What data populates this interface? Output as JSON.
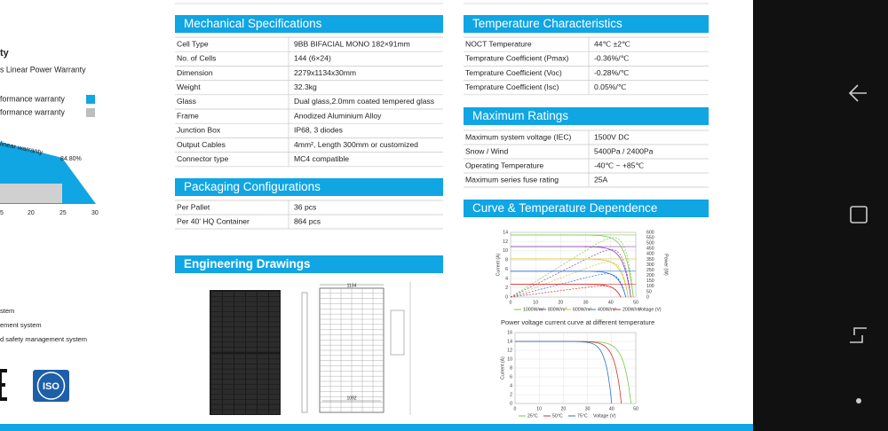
{
  "left_panel": {
    "title_fragment": "ty",
    "subtitle_fragment": "s Linear Power Warranty",
    "legend": [
      "formance warranty",
      "formance warranty"
    ],
    "chart": {
      "curve_label": "linear warranty",
      "end_value": "84.80%",
      "x_ticks": [
        "5",
        "20",
        "25",
        "30"
      ]
    },
    "certifications": [
      "stem",
      "ement system",
      "d safety management system"
    ],
    "logo": "ISO"
  },
  "mechanical": {
    "title": "Mechanical Specifications",
    "rows": [
      [
        "Cell Type",
        "9BB BIFACIAL MONO 182×91mm"
      ],
      [
        "No. of Cells",
        "144 (6×24)"
      ],
      [
        "Dimension",
        "2279x1134x30mm"
      ],
      [
        "Weight",
        "32.3kg"
      ],
      [
        "Glass",
        "Dual glass,2.0mm coated tempered glass"
      ],
      [
        "Frame",
        "Anodized Aluminium Alloy"
      ],
      [
        "Junction Box",
        "IP68, 3 diodes"
      ],
      [
        "Output Cables",
        "4mm², Length 300mm or customized"
      ],
      [
        "Connector type",
        "MC4 compatible"
      ]
    ]
  },
  "packaging": {
    "title": "Packaging Configurations",
    "rows": [
      [
        "Per Pallet",
        "36 pcs"
      ],
      [
        "Per 40' HQ Container",
        "864 pcs"
      ]
    ]
  },
  "drawings": {
    "title": "Engineering Drawings",
    "width_label": "1134",
    "inner_label": "1092"
  },
  "temperature": {
    "title": "Temperature Characteristics",
    "rows": [
      [
        "NOCT Temperature",
        "44℃ ±2℃"
      ],
      [
        "Temprature Coefficient (Pmax)",
        "-0.36%/℃"
      ],
      [
        "Temprature Coefficient (Voc)",
        "-0.28%/℃"
      ],
      [
        "Temprature Coefficient (Isc)",
        "0.05%/℃"
      ]
    ]
  },
  "ratings": {
    "title": "Maximum Ratings",
    "rows": [
      [
        "Maximum system voltage (IEC)",
        "1500V DC"
      ],
      [
        "Snow / Wind",
        "5400Pa / 2400Pa"
      ],
      [
        "Operating Temperature",
        "-40℃ ~ +85℃"
      ],
      [
        "Maximum series fuse rating",
        "25A"
      ]
    ]
  },
  "curves": {
    "title": "Curve & Temperature Dependence",
    "irradiance_chart": {
      "y_label": "Current (A)",
      "y2_label": "Power (W)",
      "x_label": "Voltage (V)",
      "yticks": [
        "0",
        "2",
        "4",
        "6",
        "8",
        "10",
        "12",
        "14"
      ],
      "y2ticks": [
        "0",
        "50",
        "100",
        "150",
        "200",
        "250",
        "300",
        "350",
        "400",
        "450",
        "500",
        "550",
        "600"
      ],
      "xticks": [
        "0",
        "10",
        "20",
        "30",
        "40",
        "50"
      ],
      "legend": [
        "1000W/m²",
        "800W/m²",
        "600W/m²",
        "400W/m²",
        "200W/m²"
      ]
    },
    "temperature_chart": {
      "caption": "Power voltage current curve at different temperature",
      "y_label": "Current (A)",
      "x_label": "Voltage (V)",
      "yticks": [
        "0",
        "2",
        "4",
        "6",
        "8",
        "10",
        "12",
        "14",
        "16"
      ],
      "xticks": [
        "0",
        "10",
        "20",
        "30",
        "40",
        "50"
      ],
      "legend": [
        "25°C",
        "50°C",
        "75°C"
      ]
    }
  }
}
